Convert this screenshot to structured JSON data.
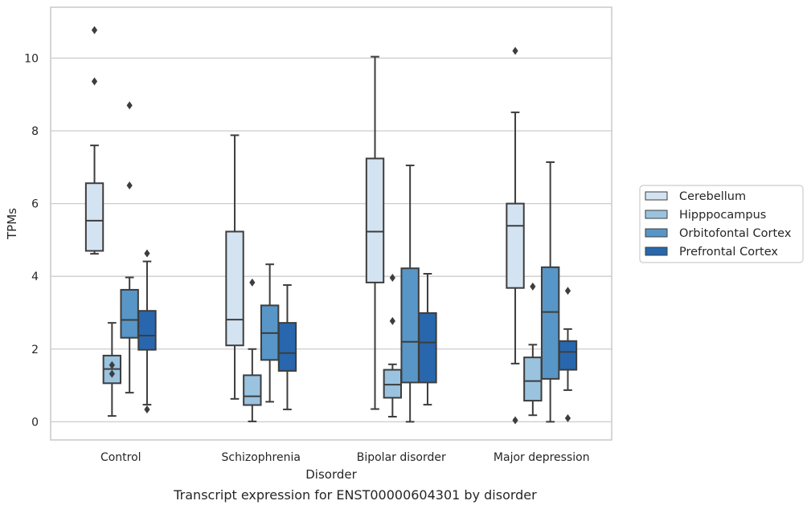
{
  "chart_data": {
    "type": "box",
    "caption": "Transcript expression for ENST00000604301 by disorder",
    "xlabel": "Disorder",
    "ylabel": "TPMs",
    "ylim": [
      -0.5,
      11.4
    ],
    "yticks": [
      0,
      2,
      4,
      6,
      8,
      10
    ],
    "grid": true,
    "legend_position": "right",
    "categories": [
      "Control",
      "Schizophrenia",
      "Bipolar disorder",
      "Major depression"
    ],
    "series": [
      {
        "name": "Cerebellum",
        "color": "#d4e3f2",
        "boxes": [
          {
            "whislo": 4.62,
            "q1": 4.7,
            "med": 5.53,
            "q3": 6.56,
            "whishi": 7.6,
            "fliers": [
              9.36,
              10.77
            ]
          },
          {
            "whislo": 0.63,
            "q1": 2.1,
            "med": 2.81,
            "q3": 5.23,
            "whishi": 7.88,
            "fliers": []
          },
          {
            "whislo": 0.35,
            "q1": 3.83,
            "med": 5.23,
            "q3": 7.24,
            "whishi": 10.04,
            "fliers": []
          },
          {
            "whislo": 1.6,
            "q1": 3.68,
            "med": 5.39,
            "q3": 6.0,
            "whishi": 8.51,
            "fliers": [
              10.2,
              0.04
            ]
          }
        ]
      },
      {
        "name": "Hipppocampus",
        "color": "#9ac3df",
        "boxes": [
          {
            "whislo": 0.16,
            "q1": 1.06,
            "med": 1.45,
            "q3": 1.82,
            "whishi": 2.72,
            "fliers": [
              1.56,
              1.32
            ]
          },
          {
            "whislo": 0.01,
            "q1": 0.46,
            "med": 0.7,
            "q3": 1.28,
            "whishi": 2.0,
            "fliers": [
              3.83
            ]
          },
          {
            "whislo": 0.14,
            "q1": 0.66,
            "med": 1.02,
            "q3": 1.43,
            "whishi": 1.58,
            "fliers": [
              3.96,
              2.77
            ]
          },
          {
            "whislo": 0.18,
            "q1": 0.58,
            "med": 1.12,
            "q3": 1.77,
            "whishi": 2.12,
            "fliers": [
              3.72
            ]
          }
        ]
      },
      {
        "name": "Orbitofontal Cortex",
        "color": "#5896c7",
        "boxes": [
          {
            "whislo": 0.8,
            "q1": 2.31,
            "med": 2.8,
            "q3": 3.63,
            "whishi": 3.97,
            "fliers": [
              8.7,
              6.5
            ]
          },
          {
            "whislo": 0.55,
            "q1": 1.7,
            "med": 2.44,
            "q3": 3.2,
            "whishi": 4.33,
            "fliers": []
          },
          {
            "whislo": 0.0,
            "q1": 1.08,
            "med": 2.2,
            "q3": 4.22,
            "whishi": 7.05,
            "fliers": []
          },
          {
            "whislo": 0.0,
            "q1": 1.18,
            "med": 3.02,
            "q3": 4.25,
            "whishi": 7.14,
            "fliers": []
          }
        ]
      },
      {
        "name": "Prefrontal Cortex",
        "color": "#2867ad",
        "boxes": [
          {
            "whislo": 0.47,
            "q1": 1.98,
            "med": 2.37,
            "q3": 3.05,
            "whishi": 4.41,
            "fliers": [
              4.63,
              0.34
            ]
          },
          {
            "whislo": 0.34,
            "q1": 1.4,
            "med": 1.89,
            "q3": 2.72,
            "whishi": 3.76,
            "fliers": []
          },
          {
            "whislo": 0.47,
            "q1": 1.08,
            "med": 2.18,
            "q3": 2.99,
            "whishi": 4.07,
            "fliers": []
          },
          {
            "whislo": 0.87,
            "q1": 1.43,
            "med": 1.92,
            "q3": 2.22,
            "whishi": 2.55,
            "fliers": [
              3.6,
              0.1
            ]
          }
        ]
      }
    ]
  }
}
